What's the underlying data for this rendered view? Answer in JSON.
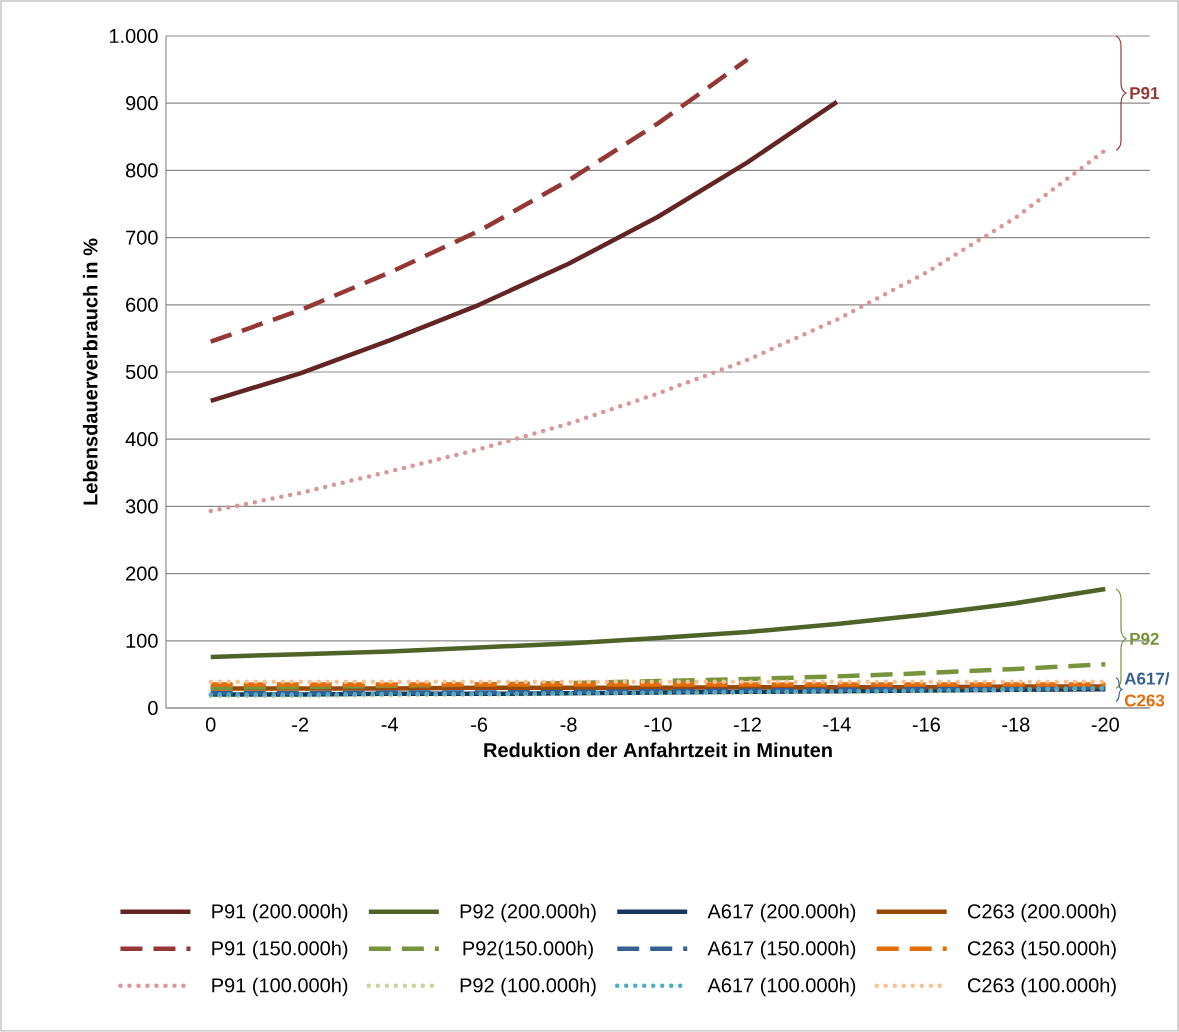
{
  "chart_data": {
    "type": "line",
    "xlabel": "Reduktion der Anfahrtzeit in Minuten",
    "ylabel": "Lebensdauerverbrauch in %",
    "categories": [
      "0",
      "-2",
      "-4",
      "-6",
      "-8",
      "-10",
      "-12",
      "-14",
      "-16",
      "-18",
      "-20"
    ],
    "ylim": [
      0,
      1000
    ],
    "yticks": [
      0,
      100,
      200,
      300,
      400,
      500,
      600,
      700,
      800,
      900,
      {
        "value": 1000,
        "label": "1.000"
      }
    ],
    "grid": "y",
    "legend": "bottom",
    "marker": "none",
    "series": [
      {
        "name": "P91 (200.000h)",
        "color": "#632523",
        "line_style": "solid",
        "values": [
          457,
          498,
          547,
          600,
          661,
          731,
          812,
          902,
          null,
          null,
          null
        ]
      },
      {
        "name": "P92 (200.000h)",
        "color": "#4f6228",
        "line_style": "solid",
        "values": [
          76,
          80,
          84,
          90,
          96,
          104,
          113,
          125,
          139,
          156,
          177
        ]
      },
      {
        "name": "A617 (200.000h)",
        "color": "#17375e",
        "line_style": "solid",
        "values": [
          20,
          20,
          21,
          21,
          22,
          23,
          24,
          25,
          26,
          27,
          28
        ]
      },
      {
        "name": "C263 (200.000h)",
        "color": "#984807",
        "line_style": "solid",
        "values": [
          29,
          29,
          29,
          30,
          30,
          30,
          31,
          31,
          31,
          32,
          32
        ]
      },
      {
        "name": "P91 (150.000h)",
        "color": "#953735",
        "line_style": "dashed",
        "values": [
          545,
          592,
          648,
          710,
          785,
          870,
          965,
          null,
          null,
          null,
          null
        ]
      },
      {
        "name": "P92(150.000h)",
        "color": "#77933c",
        "line_style": "dashed",
        "values": [
          30,
          31,
          33,
          35,
          37,
          40,
          43,
          47,
          52,
          58,
          65
        ]
      },
      {
        "name": "A617 (150.000h)",
        "color": "#376092",
        "line_style": "dashed",
        "values": [
          22,
          22,
          23,
          23,
          24,
          25,
          26,
          27,
          28,
          29,
          30
        ]
      },
      {
        "name": "C263 (150.000h)",
        "color": "#e46c0a",
        "line_style": "dashed",
        "values": [
          35,
          35,
          35,
          35,
          35,
          35,
          35,
          35,
          35,
          35,
          35
        ]
      },
      {
        "name": "P91 (100.000h)",
        "color": "#d99694",
        "line_style": "dotted",
        "values": [
          293,
          320,
          352,
          385,
          423,
          468,
          518,
          578,
          648,
          730,
          830
        ]
      },
      {
        "name": "P92 (100.000h)",
        "color": "#c3d69b",
        "line_style": "dotted",
        "values": [
          18,
          18,
          19,
          20,
          21,
          22,
          23,
          24,
          25,
          27,
          29
        ]
      },
      {
        "name": "A617 (100.000h)",
        "color": "#4bacc6",
        "line_style": "dotted",
        "values": [
          20,
          20,
          21,
          21,
          22,
          23,
          24,
          25,
          26,
          28,
          30
        ]
      },
      {
        "name": "C263 (100.000h)",
        "color": "#fac090",
        "line_style": "dotted",
        "values": [
          39,
          39,
          39,
          39,
          39,
          39,
          39,
          39,
          39,
          39,
          39
        ]
      }
    ],
    "annotations": [
      "P91",
      "P92",
      "A617/",
      "C263"
    ]
  }
}
